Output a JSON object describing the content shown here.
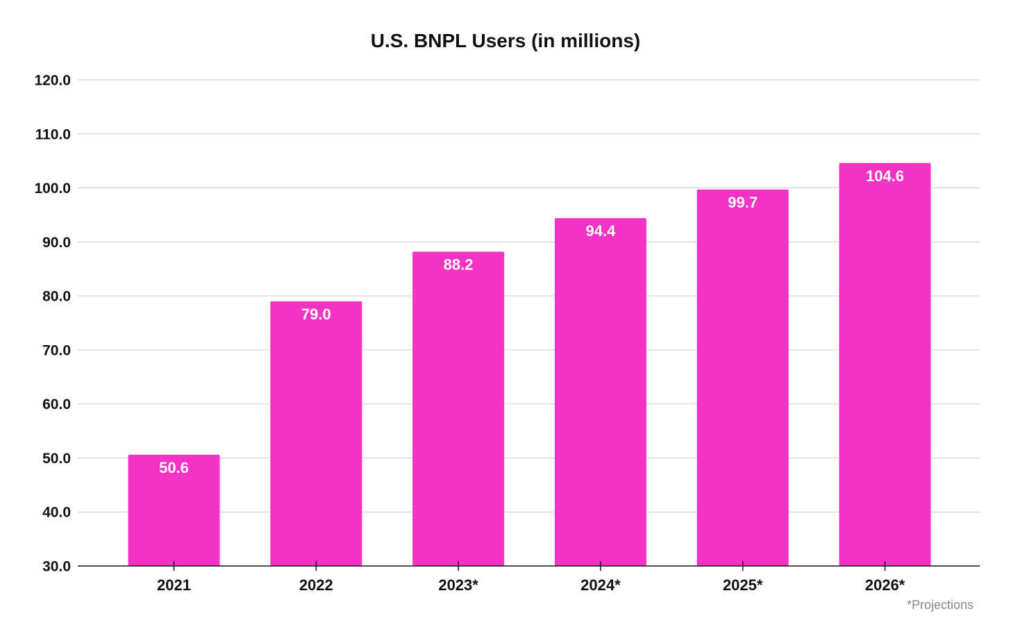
{
  "chart_data": {
    "type": "bar",
    "title": "U.S. BNPL Users (in millions)",
    "xlabel": "",
    "ylabel": "",
    "categories": [
      "2021",
      "2022",
      "2023*",
      "2024*",
      "2025*",
      "2026*"
    ],
    "values": [
      50.6,
      79.0,
      88.2,
      94.4,
      99.7,
      104.6
    ],
    "value_labels": [
      "50.6",
      "79.0",
      "88.2",
      "94.4",
      "99.7",
      "104.6"
    ],
    "ylim": [
      30,
      120
    ],
    "yticks": [
      30,
      40,
      50,
      60,
      70,
      80,
      90,
      100,
      110,
      120
    ],
    "ytick_labels": [
      "30.0",
      "40.0",
      "50.0",
      "60.0",
      "70.0",
      "80.0",
      "90.0",
      "100.0",
      "110.0",
      "120.0"
    ],
    "grid": true,
    "legend": "none",
    "bar_color": "#f433c5",
    "footnote": "*Projections"
  }
}
